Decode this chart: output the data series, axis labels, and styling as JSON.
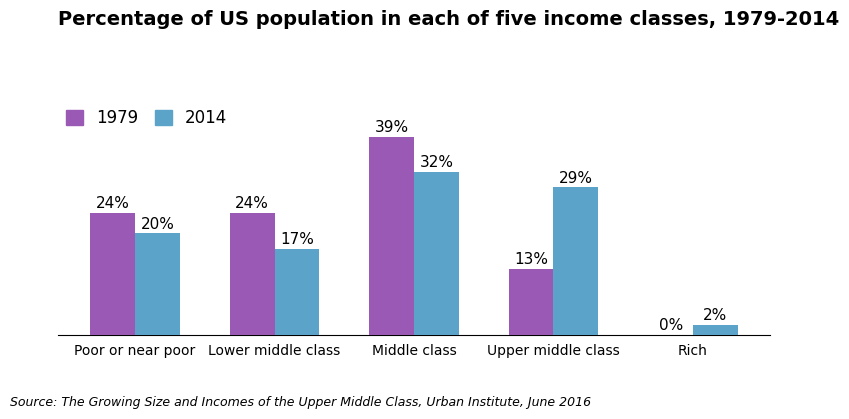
{
  "title": "Percentage of US population in each of five income classes, 1979-2014",
  "categories": [
    "Poor or near poor",
    "Lower middle class",
    "Middle class",
    "Upper middle class",
    "Rich"
  ],
  "values_1979": [
    24,
    24,
    39,
    13,
    0
  ],
  "values_2014": [
    20,
    17,
    32,
    29,
    2
  ],
  "labels_1979": [
    "24%",
    "24%",
    "39%",
    "13%",
    "0%"
  ],
  "labels_2014": [
    "20%",
    "17%",
    "32%",
    "29%",
    "2%"
  ],
  "color_1979": "#9B59B6",
  "color_2014": "#5BA3C9",
  "legend_1979": "1979",
  "legend_2014": "2014",
  "source_text": "Source: The Growing Size and Incomes of the Upper Middle Class, Urban Institute, June 2016",
  "background_color": "#FFFFFF",
  "ylim": [
    0,
    46
  ],
  "bar_width": 0.32,
  "title_fontsize": 14,
  "label_fontsize": 11,
  "tick_fontsize": 10,
  "source_fontsize": 9,
  "legend_fontsize": 12
}
